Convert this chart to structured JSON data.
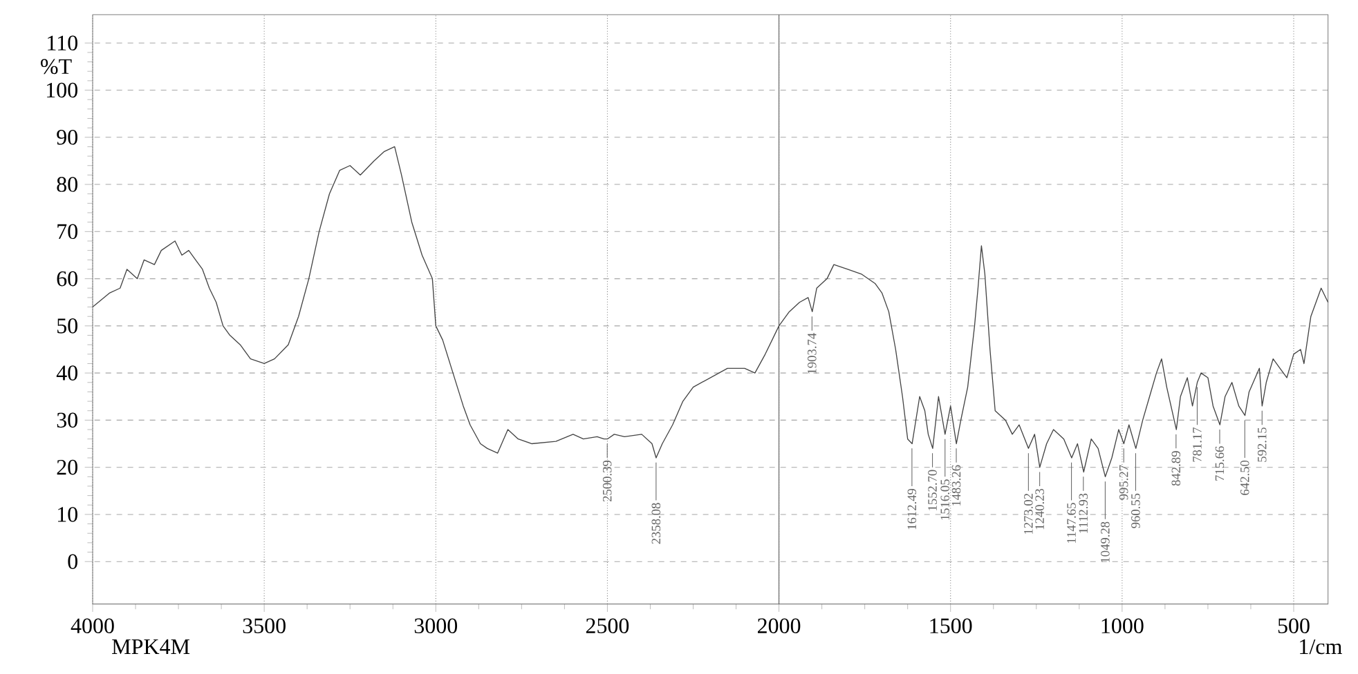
{
  "chart_data": {
    "type": "line",
    "xlabel": "1/cm",
    "ylabel": "%T",
    "color": "#444444",
    "grid": true,
    "xlim": [
      4000,
      400
    ],
    "xticks": [
      4000,
      3500,
      3000,
      2500,
      2000,
      1500,
      1000,
      500
    ],
    "ylim": [
      -9,
      116
    ],
    "yticks": [
      0,
      10,
      20,
      30,
      40,
      50,
      60,
      70,
      80,
      90,
      100,
      110
    ],
    "ref_lines": [
      {
        "axis": "x",
        "value": 2000,
        "color": "#555555",
        "line_style": "solid"
      }
    ],
    "x": [
      4000,
      3950,
      3920,
      3900,
      3870,
      3850,
      3820,
      3800,
      3760,
      3740,
      3720,
      3700,
      3680,
      3660,
      3640,
      3620,
      3600,
      3570,
      3540,
      3500,
      3470,
      3430,
      3400,
      3370,
      3340,
      3310,
      3280,
      3250,
      3220,
      3180,
      3150,
      3120,
      3100,
      3070,
      3040,
      3010,
      3000,
      2980,
      2950,
      2920,
      2900,
      2870,
      2850,
      2820,
      2790,
      2760,
      2720,
      2650,
      2600,
      2570,
      2530,
      2510,
      2500,
      2480,
      2450,
      2400,
      2370,
      2358,
      2340,
      2310,
      2280,
      2250,
      2200,
      2150,
      2100,
      2070,
      2040,
      2000,
      1970,
      1940,
      1915,
      1903,
      1890,
      1860,
      1840,
      1800,
      1760,
      1720,
      1700,
      1680,
      1660,
      1640,
      1625,
      1612,
      1590,
      1575,
      1565,
      1552,
      1535,
      1516,
      1500,
      1483,
      1470,
      1450,
      1430,
      1420,
      1410,
      1400,
      1385,
      1370,
      1340,
      1320,
      1300,
      1273,
      1255,
      1240,
      1220,
      1200,
      1170,
      1147,
      1130,
      1112,
      1090,
      1070,
      1049,
      1030,
      1010,
      995,
      980,
      960,
      940,
      920,
      900,
      885,
      870,
      842,
      830,
      810,
      795,
      781,
      770,
      750,
      735,
      715,
      700,
      680,
      660,
      642,
      630,
      600,
      592,
      580,
      560,
      540,
      520,
      500,
      480,
      470,
      450,
      420,
      400
    ],
    "values": [
      54,
      57,
      58,
      62,
      60,
      64,
      63,
      66,
      68,
      65,
      66,
      64,
      62,
      58,
      55,
      50,
      48,
      46,
      43,
      42,
      43,
      46,
      52,
      60,
      70,
      78,
      83,
      84,
      82,
      85,
      87,
      88,
      82,
      72,
      65,
      60,
      50,
      47,
      40,
      33,
      29,
      25,
      24,
      23,
      28,
      26,
      25,
      25.5,
      27,
      26,
      26.5,
      26,
      26,
      27,
      26.5,
      27,
      25,
      22,
      25,
      29,
      34,
      37,
      39,
      41,
      41,
      40,
      44,
      50,
      53,
      55,
      56,
      53,
      58,
      60,
      63,
      62,
      61,
      59,
      57,
      53,
      45,
      35,
      26,
      25,
      35,
      32,
      27,
      24,
      35,
      27,
      33,
      25,
      30,
      37,
      50,
      58,
      67,
      61,
      45,
      32,
      30,
      27,
      29,
      24,
      27,
      20,
      25,
      28,
      26,
      22,
      25,
      19,
      26,
      24,
      18,
      22,
      28,
      25,
      29,
      24,
      30,
      35,
      40,
      43,
      37,
      28,
      35,
      39,
      33,
      38,
      40,
      39,
      33,
      29,
      35,
      38,
      33,
      31,
      36,
      41,
      33,
      38,
      43,
      41,
      39,
      44,
      45,
      42,
      52,
      58,
      55
    ],
    "annotations": [
      {
        "text": "2500.39",
        "x": 2500.39,
        "y": 26
      },
      {
        "text": "2358.08",
        "x": 2358.08,
        "y": 22
      },
      {
        "text": "1903.74",
        "x": 1903.74,
        "y": 53
      },
      {
        "text": "1612.49",
        "x": 1612.49,
        "y": 25
      },
      {
        "text": "1552.70",
        "x": 1552.7,
        "y": 24
      },
      {
        "text": "1516.05",
        "x": 1516.05,
        "y": 27
      },
      {
        "text": "1483.26",
        "x": 1483.26,
        "y": 25
      },
      {
        "text": "1273.02",
        "x": 1273.02,
        "y": 24
      },
      {
        "text": "1240.23",
        "x": 1240.23,
        "y": 20
      },
      {
        "text": "1147.65",
        "x": 1147.65,
        "y": 22
      },
      {
        "text": "1112.93",
        "x": 1112.93,
        "y": 19
      },
      {
        "text": "1049.28",
        "x": 1049.28,
        "y": 18
      },
      {
        "text": "995.27",
        "x": 995.27,
        "y": 25
      },
      {
        "text": "960.55",
        "x": 960.55,
        "y": 24
      },
      {
        "text": "842.89",
        "x": 842.89,
        "y": 28
      },
      {
        "text": "781.17",
        "x": 781.17,
        "y": 38
      },
      {
        "text": "715.66",
        "x": 715.66,
        "y": 29
      },
      {
        "text": "642.50",
        "x": 642.5,
        "y": 31
      },
      {
        "text": "592.15",
        "x": 592.15,
        "y": 33
      },
      "MPK4M"
    ]
  }
}
